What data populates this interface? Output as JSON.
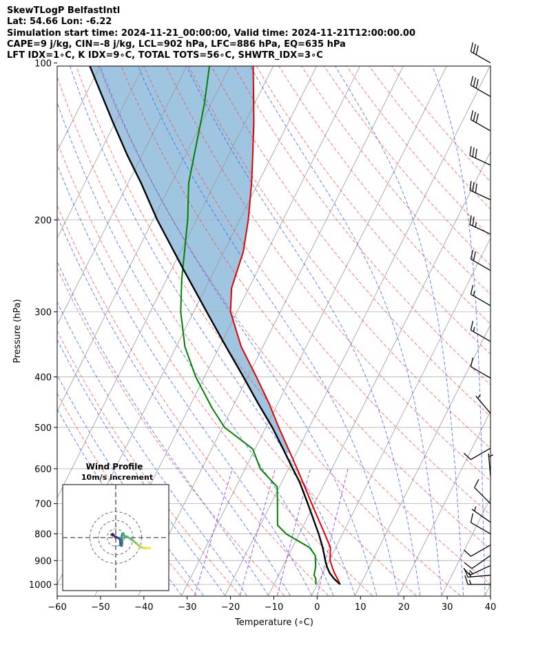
{
  "header": {
    "title": "SkewTLogP BelfastIntl",
    "latlon": "Lat: 54.66   Lon: -6.22",
    "times": "Simulation start time: 2024-11-21_00:00:00, Valid time: 2024-11-21T12:00:00.00",
    "indices1": "CAPE=9 j/kg, CIN=-8 j/kg, LCL=902 hPa, LFC=886 hPa, EQ=635 hPa",
    "indices2": "LFT IDX=1∘C, K IDX=9∘C, TOTAL TOTS=56∘C, SHWTR_IDX=3∘C"
  },
  "colors": {
    "temperature": "#e00000",
    "dewpoint": "#008000",
    "parcel": "#000000",
    "cape_fill": "#7fb2d6",
    "dry_adiabat": "#ff4040",
    "moist_adiabat": "#3355ff",
    "mixing_ratio": "#8a2be2",
    "isotherm": "#999999"
  },
  "chart_data": {
    "type": "skewt",
    "xlabel": "Temperature (∘C)",
    "ylabel": "Pressure (hPa)",
    "xlim": [
      -60,
      40
    ],
    "ylim": [
      1050,
      100
    ],
    "xticks": [
      -60,
      -50,
      -40,
      -30,
      -20,
      -10,
      0,
      10,
      20,
      30,
      40
    ],
    "yticks": [
      100,
      200,
      300,
      400,
      500,
      600,
      700,
      800,
      900,
      1000
    ],
    "grid": true,
    "temperature": [
      {
        "p": 1000,
        "t": 5.3
      },
      {
        "p": 975,
        "t": 4.0
      },
      {
        "p": 950,
        "t": 2.6
      },
      {
        "p": 925,
        "t": 1.4
      },
      {
        "p": 900,
        "t": 0.2
      },
      {
        "p": 850,
        "t": -1.2
      },
      {
        "p": 800,
        "t": -4.1
      },
      {
        "p": 700,
        "t": -10.6
      },
      {
        "p": 600,
        "t": -18.0
      },
      {
        "p": 500,
        "t": -27.0
      },
      {
        "p": 450,
        "t": -32.0
      },
      {
        "p": 400,
        "t": -38.0
      },
      {
        "p": 350,
        "t": -45.0
      },
      {
        "p": 300,
        "t": -51.5
      },
      {
        "p": 270,
        "t": -54.0
      },
      {
        "p": 230,
        "t": -55.5
      },
      {
        "p": 200,
        "t": -58.0
      },
      {
        "p": 170,
        "t": -61.5
      },
      {
        "p": 150,
        "t": -64.5
      },
      {
        "p": 130,
        "t": -68.0
      },
      {
        "p": 100,
        "t": -75.0
      }
    ],
    "dewpoint": [
      {
        "p": 1000,
        "t": -0.3
      },
      {
        "p": 975,
        "t": -1.0
      },
      {
        "p": 960,
        "t": -1.8
      },
      {
        "p": 925,
        "t": -2.4
      },
      {
        "p": 880,
        "t": -3.8
      },
      {
        "p": 850,
        "t": -6.0
      },
      {
        "p": 800,
        "t": -13.0
      },
      {
        "p": 770,
        "t": -16.0
      },
      {
        "p": 700,
        "t": -18.5
      },
      {
        "p": 650,
        "t": -20.5
      },
      {
        "p": 600,
        "t": -26.5
      },
      {
        "p": 550,
        "t": -30.5
      },
      {
        "p": 500,
        "t": -39.5
      },
      {
        "p": 460,
        "t": -44.5
      },
      {
        "p": 400,
        "t": -52.0
      },
      {
        "p": 350,
        "t": -58.0
      },
      {
        "p": 300,
        "t": -63.0
      },
      {
        "p": 260,
        "t": -66.5
      },
      {
        "p": 200,
        "t": -72.0
      },
      {
        "p": 170,
        "t": -76.0
      },
      {
        "p": 150,
        "t": -78.0
      },
      {
        "p": 120,
        "t": -81.5
      },
      {
        "p": 100,
        "t": -85.0
      }
    ],
    "parcel": [
      {
        "p": 1000,
        "t": 5.3
      },
      {
        "p": 975,
        "t": 3.2
      },
      {
        "p": 950,
        "t": 1.5
      },
      {
        "p": 925,
        "t": 0.2
      },
      {
        "p": 902,
        "t": -0.8
      },
      {
        "p": 850,
        "t": -3.0
      },
      {
        "p": 800,
        "t": -5.5
      },
      {
        "p": 700,
        "t": -11.5
      },
      {
        "p": 635,
        "t": -16.0
      },
      {
        "p": 600,
        "t": -19.0
      },
      {
        "p": 550,
        "t": -23.5
      },
      {
        "p": 500,
        "t": -28.5
      },
      {
        "p": 450,
        "t": -34.5
      },
      {
        "p": 400,
        "t": -41.0
      },
      {
        "p": 350,
        "t": -48.5
      },
      {
        "p": 300,
        "t": -57.0
      },
      {
        "p": 250,
        "t": -67.0
      },
      {
        "p": 200,
        "t": -79.0
      },
      {
        "p": 170,
        "t": -87.0
      },
      {
        "p": 150,
        "t": -93.5
      },
      {
        "p": 130,
        "t": -100.5
      },
      {
        "p": 100,
        "t": -113.0
      }
    ],
    "wind_barbs": [
      {
        "p": 100,
        "dir": 300,
        "kt": 30
      },
      {
        "p": 116,
        "dir": 300,
        "kt": 30
      },
      {
        "p": 135,
        "dir": 300,
        "kt": 30
      },
      {
        "p": 157,
        "dir": 295,
        "kt": 30
      },
      {
        "p": 183,
        "dir": 295,
        "kt": 30
      },
      {
        "p": 213,
        "dir": 295,
        "kt": 25
      },
      {
        "p": 250,
        "dir": 300,
        "kt": 20
      },
      {
        "p": 292,
        "dir": 300,
        "kt": 15
      },
      {
        "p": 342,
        "dir": 300,
        "kt": 15
      },
      {
        "p": 402,
        "dir": 300,
        "kt": 10
      },
      {
        "p": 470,
        "dir": 320,
        "kt": 5
      },
      {
        "p": 548,
        "dir": 240,
        "kt": 10
      },
      {
        "p": 620,
        "dir": 355,
        "kt": 5
      },
      {
        "p": 700,
        "dir": 315,
        "kt": 10
      },
      {
        "p": 760,
        "dir": 305,
        "kt": 5
      },
      {
        "p": 800,
        "dir": 300,
        "kt": 10
      },
      {
        "p": 840,
        "dir": 240,
        "kt": 10
      },
      {
        "p": 880,
        "dir": 235,
        "kt": 10
      },
      {
        "p": 920,
        "dir": 245,
        "kt": 15
      },
      {
        "p": 960,
        "dir": 265,
        "kt": 15
      },
      {
        "p": 1000,
        "dir": 270,
        "kt": 15
      }
    ],
    "hodograph": {
      "title": "Wind Profile",
      "subtitle": "10m/s increment",
      "rings_ms": [
        10,
        20,
        30
      ],
      "points": [
        {
          "u": 0.0,
          "v": 0.0
        },
        {
          "u": -3.5,
          "v": 4.2
        },
        {
          "u": -5.0,
          "v": 3.5
        },
        {
          "u": -2.0,
          "v": 2.0
        },
        {
          "u": 3.0,
          "v": -0.5
        },
        {
          "u": 5.0,
          "v": -2.0
        },
        {
          "u": 5.5,
          "v": -9.0
        },
        {
          "u": 7.0,
          "v": -9.5
        },
        {
          "u": 7.5,
          "v": -6.0
        },
        {
          "u": 7.0,
          "v": 2.0
        },
        {
          "u": 7.5,
          "v": 4.5
        },
        {
          "u": 9.0,
          "v": 5.0
        },
        {
          "u": 9.5,
          "v": 2.5
        },
        {
          "u": 15.0,
          "v": 0.0
        },
        {
          "u": 20.0,
          "v": -3.5
        },
        {
          "u": 25.0,
          "v": -7.5
        },
        {
          "u": 28.0,
          "v": -10.5
        },
        {
          "u": 32.0,
          "v": -12.0
        },
        {
          "u": 37.0,
          "v": -12.2
        },
        {
          "u": 40.0,
          "v": -12.0
        }
      ]
    }
  }
}
